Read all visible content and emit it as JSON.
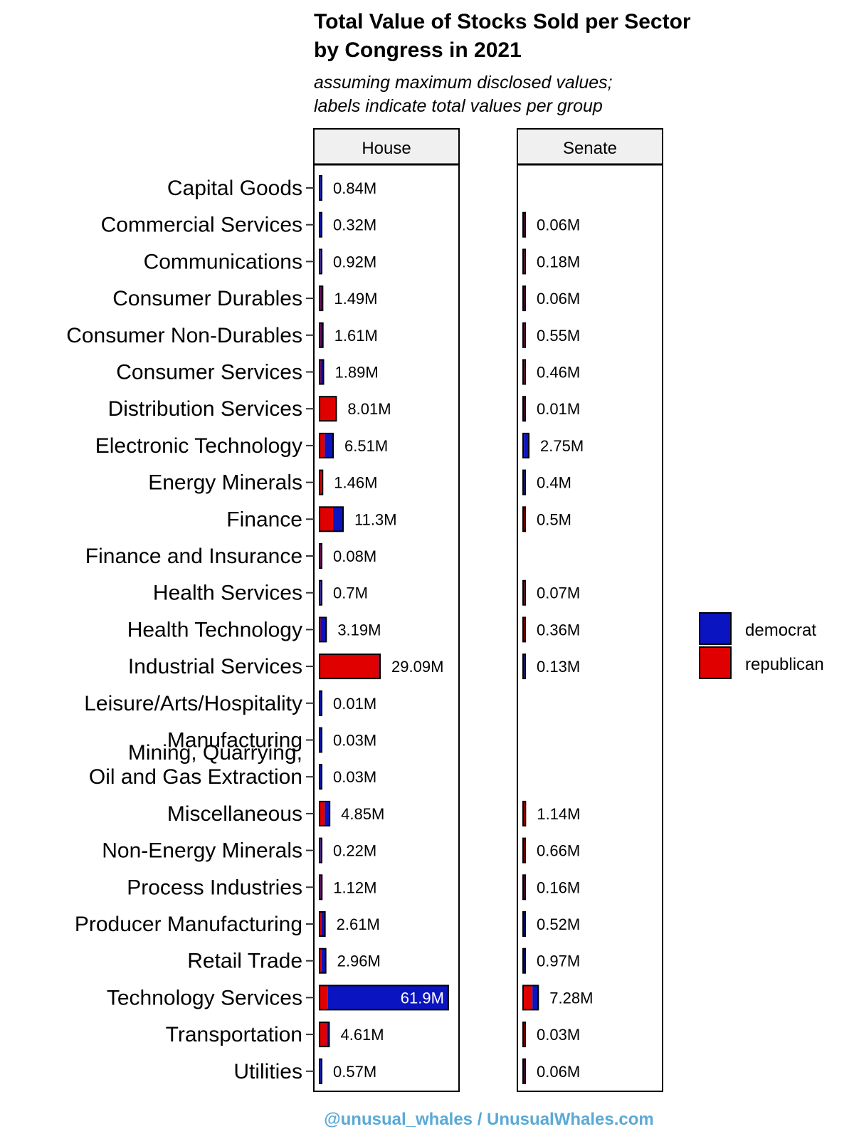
{
  "chart_data": {
    "type": "bar",
    "stacked": true,
    "orientation": "horizontal",
    "title_lines": [
      "Total Value of Stocks Sold per Sector",
      "by Congress in 2021"
    ],
    "subtitle_lines": [
      "assuming maximum disclosed values;",
      "labels indicate total values per group"
    ],
    "facets": [
      "House",
      "Senate"
    ],
    "categories": [
      "Capital Goods",
      "Commercial Services",
      "Communications",
      "Consumer Durables",
      "Consumer Non-Durables",
      "Consumer Services",
      "Distribution Services",
      "Electronic Technology",
      "Energy Minerals",
      "Finance",
      "Finance and Insurance",
      "Health Services",
      "Health Technology",
      "Industrial Services",
      "Leisure/Arts/Hospitality",
      "Manufacturing",
      "Mining, Quarrying,\nOil and Gas Extraction",
      "Miscellaneous",
      "Non-Energy Minerals",
      "Process Industries",
      "Producer Manufacturing",
      "Retail Trade",
      "Technology Services",
      "Transportation",
      "Utilities"
    ],
    "series": [
      {
        "name": "republican",
        "color": "#e00000"
      },
      {
        "name": "democrat",
        "color": "#0a14c0"
      }
    ],
    "xlim": [
      0,
      65
    ],
    "unit": "M",
    "house": {
      "republican": [
        0.3,
        0.1,
        0.4,
        0.5,
        0.5,
        0.5,
        7.6,
        2.5,
        1.0,
        6.5,
        0.04,
        0.3,
        0.5,
        28.5,
        0.0,
        0.01,
        0.01,
        2.5,
        0.1,
        0.5,
        0.8,
        0.9,
        4.0,
        3.5,
        0.2
      ],
      "democrat": [
        0.54,
        0.22,
        0.52,
        0.99,
        1.11,
        1.39,
        0.41,
        4.01,
        0.46,
        4.8,
        0.04,
        0.4,
        2.69,
        0.59,
        0.01,
        0.02,
        0.02,
        2.35,
        0.12,
        0.62,
        1.81,
        2.06,
        57.9,
        1.11,
        0.37
      ],
      "labels": [
        "0.84M",
        "0.32M",
        "0.92M",
        "1.49M",
        "1.61M",
        "1.89M",
        "8.01M",
        "6.51M",
        "1.46M",
        "11.3M",
        "0.08M",
        "0.7M",
        "3.19M",
        "29.09M",
        "0.01M",
        "0.03M",
        "0.03M",
        "4.85M",
        "0.22M",
        "1.12M",
        "2.61M",
        "2.96M",
        "61.9M",
        "4.61M",
        "0.57M"
      ]
    },
    "senate": {
      "republican": [
        null,
        0.03,
        0.1,
        0.03,
        0.3,
        0.26,
        0.005,
        0.4,
        0.15,
        0.45,
        null,
        0.04,
        0.3,
        0.05,
        null,
        null,
        null,
        1.1,
        0.6,
        0.08,
        0.12,
        0.27,
        4.5,
        0.02,
        0.03
      ],
      "democrat": [
        null,
        0.03,
        0.08,
        0.03,
        0.25,
        0.2,
        0.005,
        2.35,
        0.25,
        0.05,
        null,
        0.03,
        0.06,
        0.08,
        null,
        null,
        null,
        0.04,
        0.06,
        0.08,
        0.4,
        0.7,
        2.78,
        0.01,
        0.03
      ],
      "labels": [
        null,
        "0.06M",
        "0.18M",
        "0.06M",
        "0.55M",
        "0.46M",
        "0.01M",
        "2.75M",
        "0.4M",
        "0.5M",
        null,
        "0.07M",
        "0.36M",
        "0.13M",
        null,
        null,
        null,
        "1.14M",
        "0.66M",
        "0.16M",
        "0.52M",
        "0.97M",
        "7.28M",
        "0.03M",
        "0.06M"
      ]
    },
    "legend": {
      "position": "right",
      "entries": [
        "democrat",
        "republican"
      ]
    },
    "grid": false
  },
  "footer": "@unusual_whales / UnusualWhales.com",
  "colors": {
    "footer": "#5aa9d6",
    "outline": "#000000",
    "strip_bg": "#f0f0f0"
  }
}
